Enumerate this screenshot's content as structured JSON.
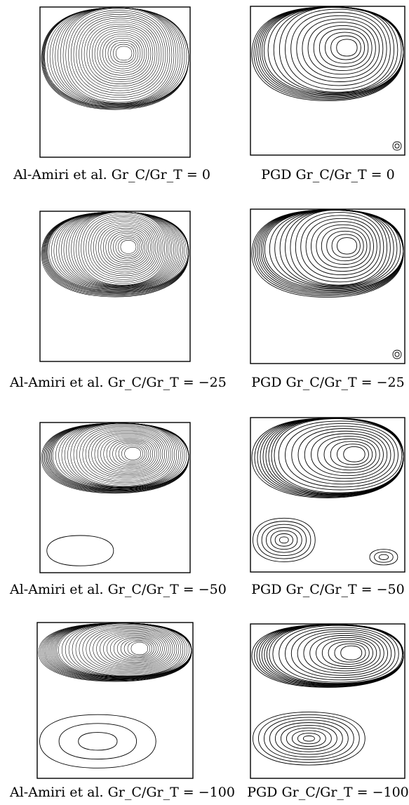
{
  "panels": [
    {
      "row": 0,
      "left": {
        "source": "Al-Amiri et al.",
        "expr": "Gr_C/Gr_T = 0",
        "ratio": 0
      },
      "right": {
        "source": "PGD",
        "expr": "Gr_C/Gr_T = 0",
        "ratio": 0
      }
    },
    {
      "row": 1,
      "left": {
        "source": "Al-Amiri et al.",
        "expr": "Gr_C/Gr_T = −25",
        "ratio": -25
      },
      "right": {
        "source": "PGD",
        "expr": "Gr_C/Gr_T = −25",
        "ratio": -25
      }
    },
    {
      "row": 2,
      "left": {
        "source": "Al-Amiri et al.",
        "expr": "Gr_C/Gr_T = −50",
        "ratio": -50
      },
      "right": {
        "source": "PGD",
        "expr": "Gr_C/Gr_T = −50",
        "ratio": -50
      }
    },
    {
      "row": 3,
      "left": {
        "source": "Al-Amiri et al.",
        "expr": "Gr_C/Gr_T = −100",
        "ratio": -100
      },
      "right": {
        "source": "PGD",
        "expr": "Gr_C/Gr_T = −100",
        "ratio": -100
      }
    }
  ],
  "captions": {
    "r0_left": "Al-Amiri et al.  Gr_C/Gr_T = 0",
    "r0_right": "PGD  Gr_C/Gr_T = 0",
    "r1_left": "Al-Amiri et al.  Gr_C/Gr_T = −25",
    "r1_right": "PGD  Gr_C/Gr_T = −25",
    "r2_left": "Al-Amiri et al.  Gr_C/Gr_T = −50",
    "r2_right": "PGD  Gr_C/Gr_T = −50",
    "r3_left": "Al-Amiri et al.  Gr_C/Gr_T = −100",
    "r3_right": "PGD  Gr_C/Gr_T = −100"
  },
  "colors": {
    "line": "#000000",
    "background": "#ffffff"
  }
}
